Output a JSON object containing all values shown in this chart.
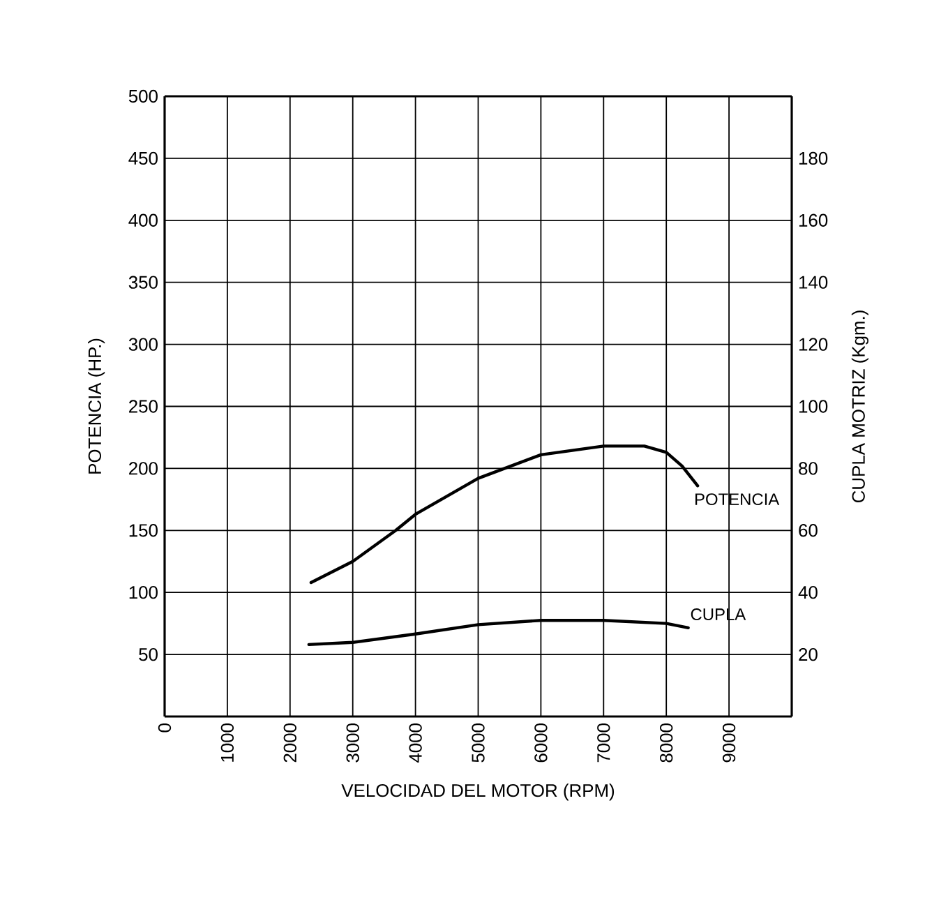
{
  "chart_data": {
    "type": "line",
    "xlabel": "VELOCIDAD DEL MOTOR (RPM)",
    "ylabel": "POTENCIA (HP.)",
    "y2label": "CUPLA MOTRIZ (Kgm.)",
    "xlim": [
      0,
      10000
    ],
    "xticks": [
      0,
      1000,
      2000,
      3000,
      4000,
      5000,
      6000,
      7000,
      8000,
      9000
    ],
    "ylim": [
      0,
      500
    ],
    "yticks": [
      50,
      100,
      150,
      200,
      250,
      300,
      350,
      400,
      450,
      500
    ],
    "y2lim": [
      0,
      200
    ],
    "y2ticks": [
      20,
      40,
      60,
      80,
      100,
      120,
      140,
      160,
      180
    ],
    "grid": true,
    "line_style": "solid",
    "marker": "none",
    "series": [
      {
        "name": "POTENCIA",
        "color": "#000000",
        "x": [
          2335,
          3000,
          3685,
          4000,
          5000,
          6000,
          7000,
          7650,
          8000,
          8250,
          8500
        ],
        "values": [
          108,
          125,
          150,
          163,
          192,
          211,
          218,
          218,
          213,
          202,
          186
        ]
      },
      {
        "name": "CUPLA",
        "color": "#000000",
        "axis": "y2",
        "x": [
          2300,
          3000,
          4000,
          5000,
          6000,
          7000,
          8000,
          8350
        ],
        "values": [
          23.2,
          23.9,
          26.6,
          29.6,
          31,
          31,
          30,
          28.6
        ]
      }
    ]
  }
}
